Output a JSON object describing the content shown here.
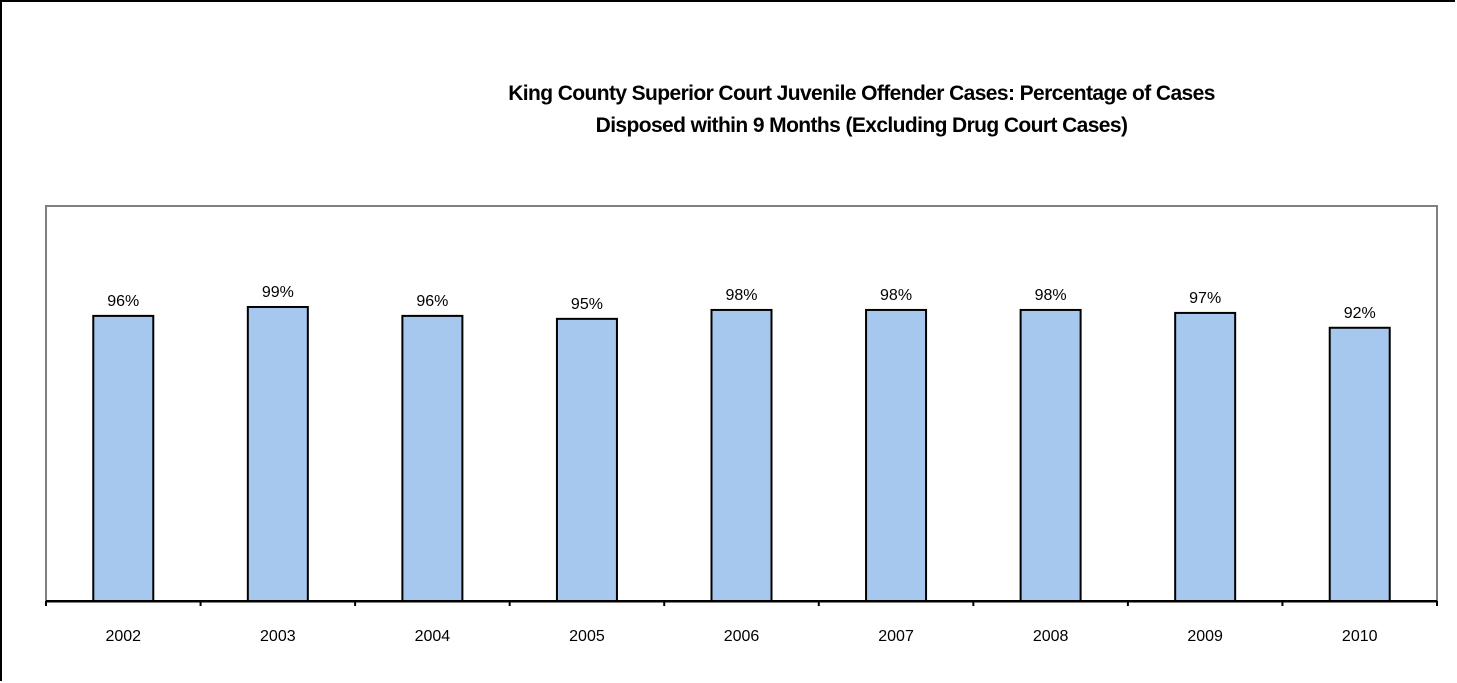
{
  "chart_data": {
    "type": "bar",
    "title_lines": [
      "King County Superior Court Juvenile Offender Cases: Percentage of Cases",
      "Disposed within 9 Months (Excluding Drug Court Cases)"
    ],
    "categories": [
      "2002",
      "2003",
      "2004",
      "2005",
      "2006",
      "2007",
      "2008",
      "2009",
      "2010"
    ],
    "values": [
      96,
      99,
      96,
      95,
      98,
      98,
      98,
      97,
      92
    ],
    "data_labels": [
      "96%",
      "99%",
      "96%",
      "95%",
      "98%",
      "98%",
      "98%",
      "97%",
      "92%"
    ],
    "ylim": [
      0,
      133
    ],
    "grid": false,
    "legend": false,
    "colors": {
      "bar_fill": "#a6c8ee",
      "bar_stroke": "#000000",
      "plot_border": "#808080"
    }
  }
}
